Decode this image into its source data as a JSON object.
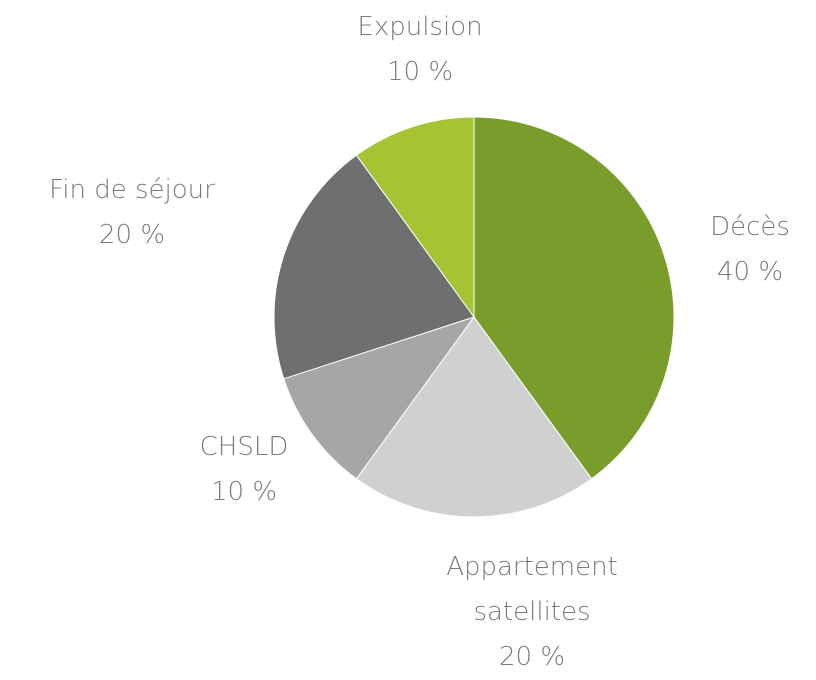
{
  "chart_data": {
    "type": "pie",
    "categories": [
      "Décès",
      "Appartement satellites",
      "CHSLD",
      "Fin de séjour",
      "Expulsion"
    ],
    "values": [
      40,
      20,
      10,
      20,
      10
    ],
    "value_labels": [
      "40 %",
      "20 %",
      "10 %",
      "20 %",
      "10 %"
    ],
    "colors": [
      "#789d2a",
      "#d0d0d0",
      "#a6a6a6",
      "#6f6f6f",
      "#a5c332"
    ]
  }
}
